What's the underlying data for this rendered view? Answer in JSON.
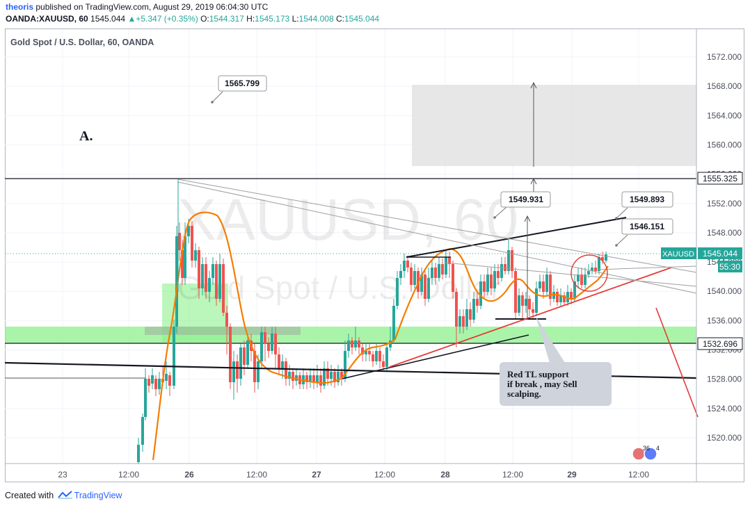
{
  "header": {
    "user": "theoris",
    "published_text": " published on TradingView.com, August 29, 2019 06:04:30 UTC"
  },
  "ohlc": {
    "symbol": "OANDA:XAUUSD, 60",
    "last": "1545.044",
    "change": "+5.347 (+0.35%)",
    "o_label": "O:",
    "o_value": "1544.317",
    "h_label": "H:",
    "h_value": "1545.173",
    "l_label": "L:",
    "l_value": "1544.008",
    "c_label": "C:",
    "c_value": "1545.044"
  },
  "chart": {
    "title": "Gold Spot / U.S. Dollar, 60, OANDA",
    "watermark_symbol": "XAUUSD, 60",
    "watermark_desc": "Gold Spot / U.S. Dollar",
    "label_a": "A.",
    "callouts": [
      "1565.799",
      "1549.931",
      "1549.893",
      "1546.151"
    ],
    "note_lines": [
      "Red TL support",
      "if break , may Sell",
      "scalping."
    ],
    "price_tag_symbol": "XAUUSD",
    "price_tag_value": "1545.044",
    "countdown": "55:30",
    "level_upper": "1555.325",
    "level_lower": "1532.696",
    "events_count": "36",
    "events_count2": "4"
  },
  "chart_data": {
    "type": "candlestick",
    "title": "Gold Spot / U.S. Dollar, 60, OANDA",
    "y_ticks": [
      "1572.000",
      "1568.000",
      "1564.000",
      "1560.000",
      "1556.000",
      "1552.000",
      "1548.000",
      "1544.000",
      "1540.000",
      "1536.000",
      "1532.000",
      "1528.000",
      "1524.000",
      "1520.000"
    ],
    "y_range": [
      1516,
      1576
    ],
    "x_ticks": [
      "23",
      "12:00",
      "26",
      "12:00",
      "27",
      "12:00",
      "28",
      "12:00",
      "29",
      "12:00"
    ],
    "last_price": 1545.044,
    "levels": [
      1555.325,
      1532.696
    ],
    "grid": true
  },
  "colors": {
    "up": "#26a69a",
    "down": "#ef5350",
    "ema": "#f57c00",
    "red_line": "#e53935",
    "green_zone": "#8ef08e",
    "gray_box": "#e0e0e0",
    "accent": "#2962ff"
  },
  "footer": {
    "created_with": "Created with",
    "brand": "TradingView"
  }
}
